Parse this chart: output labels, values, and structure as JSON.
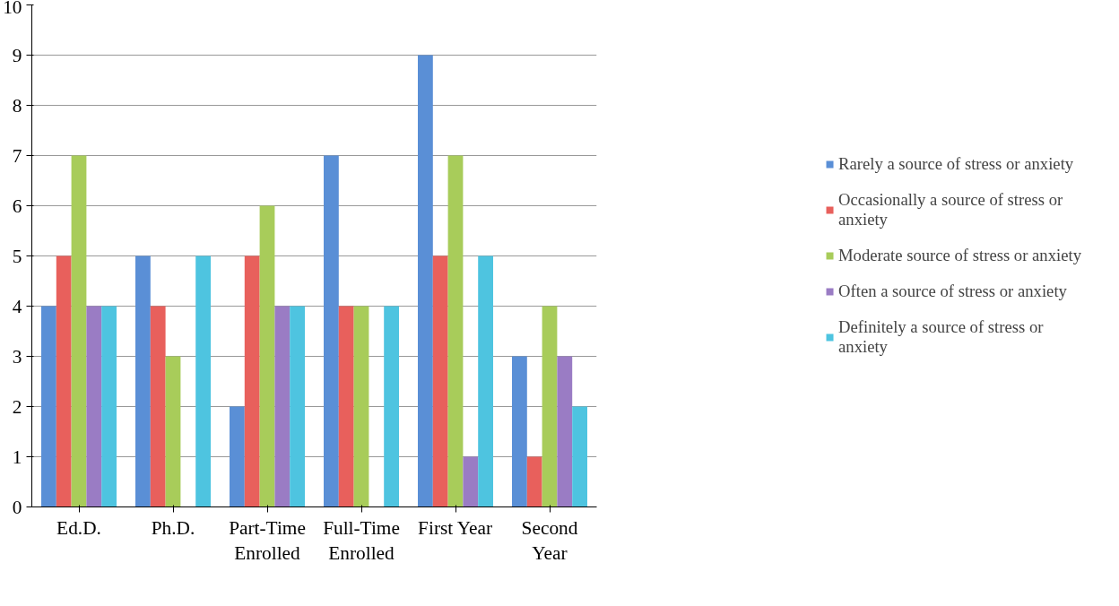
{
  "chart_data": {
    "type": "bar",
    "categories": [
      "Ed.D.",
      "Ph.D.",
      "Part-Time\nEnrolled",
      "Full-Time\nEnrolled",
      "First Year",
      "Second\nYear"
    ],
    "series": [
      {
        "name": "Rarely a source of stress or anxiety",
        "color": "#5a8fd6",
        "values": [
          4,
          5,
          2,
          7,
          9,
          3
        ]
      },
      {
        "name": "Occasionally a source of stress or anxiety",
        "color": "#e8605c",
        "values": [
          5,
          4,
          5,
          4,
          5,
          1
        ]
      },
      {
        "name": "Moderate source of stress or anxiety",
        "color": "#a8cc5a",
        "values": [
          7,
          3,
          6,
          4,
          7,
          4
        ]
      },
      {
        "name": "Often a source of stress or anxiety",
        "color": "#9a7cc4",
        "values": [
          4,
          0,
          4,
          0,
          1,
          3
        ]
      },
      {
        "name": "Definitely a source of stress or anxiety",
        "color": "#4ec4e0",
        "values": [
          4,
          5,
          4,
          4,
          5,
          2
        ]
      }
    ],
    "ylim": [
      0,
      10
    ],
    "yticks": [
      0,
      1,
      2,
      3,
      4,
      5,
      6,
      7,
      8,
      9,
      10
    ],
    "grid": "y",
    "legend": "right"
  }
}
